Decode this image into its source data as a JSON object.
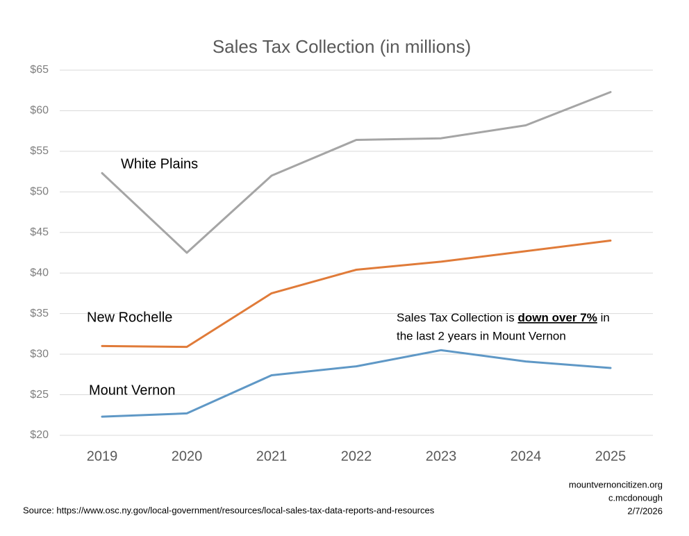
{
  "chart_data": {
    "type": "line",
    "title": "Sales Tax Collection (in millions)",
    "categories": [
      "2019",
      "2020",
      "2021",
      "2022",
      "2023",
      "2024",
      "2025"
    ],
    "series": [
      {
        "name": "White Plains",
        "color": "#a5a5a5",
        "values": [
          52.3,
          42.5,
          52.0,
          56.4,
          56.6,
          58.2,
          62.3
        ]
      },
      {
        "name": "New Rochelle",
        "color": "#e07b39",
        "values": [
          31.0,
          30.9,
          37.5,
          40.4,
          41.4,
          42.7,
          44.0
        ]
      },
      {
        "name": "Mount Vernon",
        "color": "#5f98c6",
        "values": [
          22.3,
          22.7,
          27.4,
          28.5,
          30.5,
          29.1,
          28.3
        ]
      }
    ],
    "ylim": [
      20,
      65
    ],
    "yticks": [
      {
        "value": 20,
        "label": "$20"
      },
      {
        "value": 25,
        "label": "$25"
      },
      {
        "value": 30,
        "label": "$30"
      },
      {
        "value": 35,
        "label": "$35"
      },
      {
        "value": 40,
        "label": "$40"
      },
      {
        "value": 45,
        "label": "$45"
      },
      {
        "value": 50,
        "label": "$50"
      },
      {
        "value": 55,
        "label": "$55"
      },
      {
        "value": 60,
        "label": "$60"
      },
      {
        "value": 65,
        "label": "$65"
      }
    ],
    "grid": true,
    "annotation": {
      "line1_before": "Sales Tax Collection is",
      "line1_emphasis": "down over 7%",
      "line1_after": "in",
      "line2": "the last 2 years in Mount Vernon"
    },
    "credits": [
      "mountvernoncitizen.org",
      "c.mcdonough",
      "2/7/2026"
    ],
    "source": "Source: https://www.osc.ny.gov/local-government/resources/local-sales-tax-data-reports-and-resources"
  }
}
